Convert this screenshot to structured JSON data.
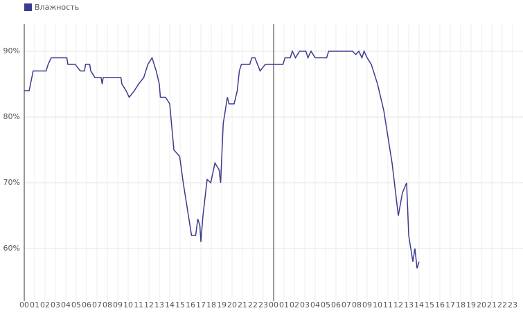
{
  "chart_data": {
    "type": "line",
    "legend_position": "top-left",
    "grid": true,
    "series": [
      {
        "name": "Влажность",
        "color": "#3b3b8f",
        "x": [
          0,
          0.47,
          0.86,
          2.1,
          2.3,
          2.6,
          4.1,
          4.2,
          4.9,
          5.4,
          5.8,
          5.9,
          6.3,
          6.4,
          6.8,
          7.4,
          7.5,
          7.6,
          9.3,
          9.4,
          9.8,
          10.1,
          10.6,
          11.0,
          11.5,
          11.9,
          12.3,
          12.7,
          13.0,
          13.1,
          13.6,
          14.0,
          14.4,
          14.96,
          15.3,
          15.8,
          16.1,
          16.5,
          16.7,
          16.9,
          17.0,
          17.2,
          17.6,
          17.95,
          18.35,
          18.75,
          18.9,
          19.15,
          19.55,
          19.7,
          20.2,
          20.5,
          20.7,
          20.9,
          21.7,
          21.9,
          22.2,
          22.7,
          23.2,
          24.9,
          25.1,
          25.6,
          25.8,
          26.1,
          26.5,
          27.1,
          27.3,
          27.6,
          28.0,
          29.1,
          29.3,
          31.6,
          31.9,
          32.2,
          32.5,
          32.7,
          33.0,
          33.4,
          34.0,
          34.6,
          34.9,
          35.4,
          35.7,
          36.0,
          36.4,
          36.8,
          37.0,
          37.4,
          37.6,
          37.8,
          38.0
        ],
        "values": [
          84,
          84,
          87,
          87,
          88,
          89,
          89,
          88,
          88,
          87,
          87,
          88,
          88,
          87,
          86,
          86,
          85,
          86,
          86,
          85,
          84,
          83,
          84,
          85,
          86,
          88,
          89,
          87,
          85,
          83,
          83,
          82,
          75,
          74,
          70,
          65,
          62,
          62,
          64.5,
          63.5,
          61,
          65,
          70.5,
          70,
          73,
          72,
          70,
          79,
          83,
          82,
          82,
          84,
          87,
          88,
          88,
          89,
          89,
          87,
          88,
          88,
          89,
          89,
          90,
          89,
          90,
          90,
          89,
          90,
          89,
          89,
          90,
          90,
          89.5,
          90,
          89,
          90,
          89,
          88,
          85,
          81,
          78,
          73,
          69,
          65,
          68.5,
          70,
          62,
          58,
          60,
          57,
          58
        ]
      }
    ],
    "xlim": [
      0,
      48
    ],
    "ylim": [
      52,
      94.1
    ],
    "yticks": [
      {
        "value": 60,
        "label": "60%"
      },
      {
        "value": 70,
        "label": "70%"
      },
      {
        "value": 80,
        "label": "80%"
      },
      {
        "value": 90,
        "label": "90%"
      }
    ],
    "xticks": [
      {
        "value": 0,
        "label": "00"
      },
      {
        "value": 1,
        "label": "01"
      },
      {
        "value": 2,
        "label": "02"
      },
      {
        "value": 3,
        "label": "03"
      },
      {
        "value": 4,
        "label": "04"
      },
      {
        "value": 5,
        "label": "05"
      },
      {
        "value": 6,
        "label": "06"
      },
      {
        "value": 7,
        "label": "07"
      },
      {
        "value": 8,
        "label": "08"
      },
      {
        "value": 9,
        "label": "09"
      },
      {
        "value": 10,
        "label": "10"
      },
      {
        "value": 11,
        "label": "11"
      },
      {
        "value": 12,
        "label": "12"
      },
      {
        "value": 13,
        "label": "13"
      },
      {
        "value": 14,
        "label": "14"
      },
      {
        "value": 15,
        "label": "15"
      },
      {
        "value": 16,
        "label": "16"
      },
      {
        "value": 17,
        "label": "17"
      },
      {
        "value": 18,
        "label": "18"
      },
      {
        "value": 19,
        "label": "19"
      },
      {
        "value": 20,
        "label": "20"
      },
      {
        "value": 21,
        "label": "21"
      },
      {
        "value": 22,
        "label": "22"
      },
      {
        "value": 23,
        "label": "23"
      },
      {
        "value": 24,
        "label": "00"
      },
      {
        "value": 25,
        "label": "01"
      },
      {
        "value": 26,
        "label": "02"
      },
      {
        "value": 27,
        "label": "03"
      },
      {
        "value": 28,
        "label": "04"
      },
      {
        "value": 29,
        "label": "05"
      },
      {
        "value": 30,
        "label": "06"
      },
      {
        "value": 31,
        "label": "07"
      },
      {
        "value": 32,
        "label": "08"
      },
      {
        "value": 33,
        "label": "09"
      },
      {
        "value": 34,
        "label": "10"
      },
      {
        "value": 35,
        "label": "11"
      },
      {
        "value": 36,
        "label": "12"
      },
      {
        "value": 37,
        "label": "13"
      },
      {
        "value": 38,
        "label": "14"
      },
      {
        "value": 39,
        "label": "15"
      },
      {
        "value": 40,
        "label": "16"
      },
      {
        "value": 41,
        "label": "17"
      },
      {
        "value": 42,
        "label": "18"
      },
      {
        "value": 43,
        "label": "19"
      },
      {
        "value": 44,
        "label": "20"
      },
      {
        "value": 45,
        "label": "21"
      },
      {
        "value": 46,
        "label": "22"
      },
      {
        "value": 47,
        "label": "23"
      }
    ],
    "vlines": [
      24
    ]
  }
}
